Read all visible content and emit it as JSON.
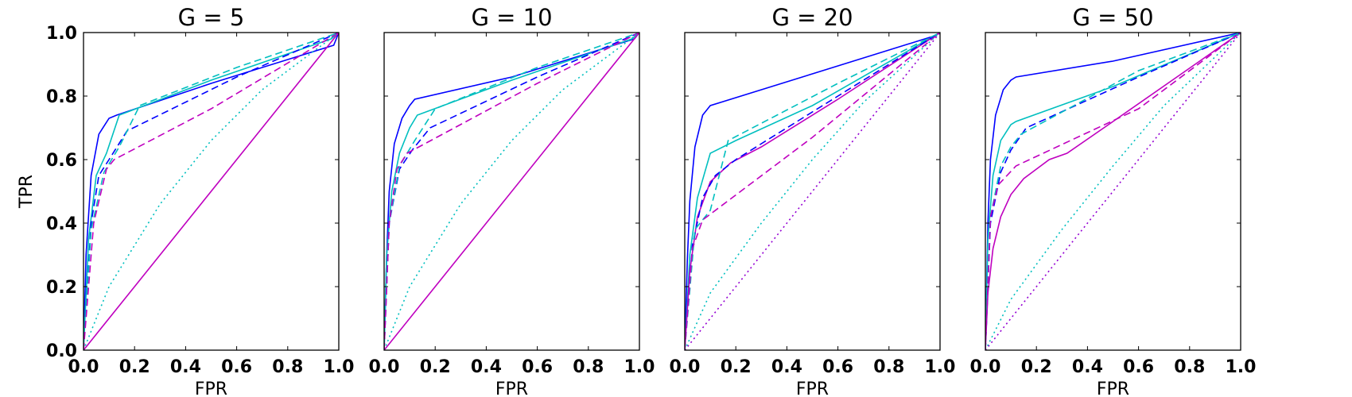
{
  "chart_data": [
    {
      "type": "line",
      "title": "G = 5",
      "xlabel": "FPR",
      "ylabel": "TPR",
      "xlim": [
        0,
        1
      ],
      "ylim": [
        0,
        1
      ],
      "xticks": [
        "0.0",
        "0.2",
        "0.4",
        "0.6",
        "0.8",
        "1.0"
      ],
      "yticks": [
        "0.0",
        "0.2",
        "0.4",
        "0.6",
        "0.8",
        "1.0"
      ],
      "grid": false,
      "series": [
        {
          "color": "#0000ff",
          "style": "solid",
          "x": [
            0,
            0.01,
            0.03,
            0.06,
            0.1,
            0.13,
            0.5,
            0.98,
            1.0
          ],
          "y": [
            0,
            0.3,
            0.55,
            0.68,
            0.73,
            0.74,
            0.84,
            0.96,
            1.0
          ]
        },
        {
          "color": "#00bfbf",
          "style": "solid",
          "x": [
            0,
            0.02,
            0.05,
            0.09,
            0.14,
            0.5,
            0.97,
            1.0
          ],
          "y": [
            0,
            0.35,
            0.55,
            0.62,
            0.74,
            0.85,
            0.98,
            1.0
          ]
        },
        {
          "color": "#0000ff",
          "style": "dashed",
          "x": [
            0,
            0.03,
            0.06,
            0.1,
            0.17,
            0.6,
            1.0
          ],
          "y": [
            0,
            0.4,
            0.55,
            0.6,
            0.69,
            0.86,
            1.0
          ]
        },
        {
          "color": "#00bfbf",
          "style": "dashed",
          "x": [
            0,
            0.03,
            0.08,
            0.14,
            0.22,
            0.6,
            1.0
          ],
          "y": [
            0,
            0.38,
            0.56,
            0.64,
            0.77,
            0.89,
            1.0
          ]
        },
        {
          "color": "#bf00bf",
          "style": "dashed",
          "x": [
            0,
            0.04,
            0.09,
            0.12,
            0.5,
            1.0
          ],
          "y": [
            0,
            0.4,
            0.57,
            0.6,
            0.76,
            1.0
          ]
        },
        {
          "color": "#00bfbf",
          "style": "dotted",
          "x": [
            0,
            0.1,
            0.3,
            0.5,
            0.7,
            1.0
          ],
          "y": [
            0,
            0.2,
            0.46,
            0.66,
            0.82,
            1.0
          ]
        },
        {
          "color": "#bf00bf",
          "style": "solid",
          "x": [
            0,
            1.0
          ],
          "y": [
            0,
            1.0
          ]
        }
      ]
    },
    {
      "type": "line",
      "title": "G = 10",
      "xlabel": "FPR",
      "ylabel": "",
      "xlim": [
        0,
        1
      ],
      "ylim": [
        0,
        1
      ],
      "xticks": [
        "0.0",
        "0.2",
        "0.4",
        "0.6",
        "0.8",
        "1.0"
      ],
      "grid": false,
      "series": [
        {
          "color": "#0000ff",
          "style": "solid",
          "x": [
            0,
            0.01,
            0.02,
            0.04,
            0.07,
            0.1,
            0.12,
            0.5,
            0.98,
            1.0
          ],
          "y": [
            0,
            0.3,
            0.5,
            0.65,
            0.73,
            0.77,
            0.79,
            0.86,
            0.98,
            1.0
          ]
        },
        {
          "color": "#00bfbf",
          "style": "solid",
          "x": [
            0,
            0.01,
            0.03,
            0.06,
            0.1,
            0.13,
            0.5,
            0.97,
            1.0
          ],
          "y": [
            0,
            0.3,
            0.5,
            0.62,
            0.7,
            0.74,
            0.85,
            0.98,
            1.0
          ]
        },
        {
          "color": "#0000ff",
          "style": "dashed",
          "x": [
            0,
            0.02,
            0.06,
            0.11,
            0.18,
            0.6,
            1.0
          ],
          "y": [
            0,
            0.4,
            0.57,
            0.63,
            0.7,
            0.86,
            1.0
          ]
        },
        {
          "color": "#00bfbf",
          "style": "dashed",
          "x": [
            0,
            0.02,
            0.06,
            0.12,
            0.2,
            0.6,
            1.0
          ],
          "y": [
            0,
            0.4,
            0.58,
            0.66,
            0.76,
            0.89,
            1.0
          ]
        },
        {
          "color": "#bf00bf",
          "style": "dashed",
          "x": [
            0,
            0.02,
            0.05,
            0.09,
            0.6,
            1.0
          ],
          "y": [
            0,
            0.4,
            0.57,
            0.62,
            0.84,
            1.0
          ]
        },
        {
          "color": "#00bfbf",
          "style": "dotted",
          "x": [
            0,
            0.1,
            0.3,
            0.5,
            0.7,
            1.0
          ],
          "y": [
            0,
            0.2,
            0.46,
            0.66,
            0.82,
            1.0
          ]
        },
        {
          "color": "#bf00bf",
          "style": "solid",
          "x": [
            0,
            1.0
          ],
          "y": [
            0,
            1.0
          ]
        }
      ]
    },
    {
      "type": "line",
      "title": "G = 20",
      "xlabel": "FPR",
      "ylabel": "",
      "xlim": [
        0,
        1
      ],
      "ylim": [
        0,
        1
      ],
      "xticks": [
        "0.0",
        "0.2",
        "0.4",
        "0.6",
        "0.8",
        "1.0"
      ],
      "grid": false,
      "series": [
        {
          "color": "#0000ff",
          "style": "solid",
          "x": [
            0,
            0.01,
            0.02,
            0.04,
            0.07,
            0.1,
            0.5,
            0.98,
            1.0
          ],
          "y": [
            0,
            0.28,
            0.47,
            0.64,
            0.74,
            0.77,
            0.87,
            0.99,
            1.0
          ]
        },
        {
          "color": "#00bfbf",
          "style": "solid",
          "x": [
            0,
            0.02,
            0.05,
            0.1,
            0.2,
            0.5,
            1.0
          ],
          "y": [
            0,
            0.3,
            0.48,
            0.62,
            0.66,
            0.77,
            1.0
          ]
        },
        {
          "color": "#bf00bf",
          "style": "solid",
          "x": [
            0,
            0.02,
            0.05,
            0.1,
            0.18,
            0.3,
            0.6,
            1.0
          ],
          "y": [
            0,
            0.25,
            0.42,
            0.53,
            0.59,
            0.64,
            0.79,
            1.0
          ]
        },
        {
          "color": "#0000ff",
          "style": "dashed",
          "x": [
            0,
            0.03,
            0.07,
            0.12,
            0.2,
            0.6,
            1.0
          ],
          "y": [
            0,
            0.33,
            0.48,
            0.55,
            0.6,
            0.8,
            1.0
          ]
        },
        {
          "color": "#00bfbf",
          "style": "dashed",
          "x": [
            0,
            0.04,
            0.1,
            0.17,
            0.6,
            1.0
          ],
          "y": [
            0,
            0.38,
            0.44,
            0.66,
            0.84,
            1.0
          ]
        },
        {
          "color": "#bf00bf",
          "style": "dashed",
          "x": [
            0,
            0.03,
            0.07,
            0.5,
            1.0
          ],
          "y": [
            0,
            0.32,
            0.41,
            0.67,
            1.0
          ]
        },
        {
          "color": "#00bfbf",
          "style": "dotted",
          "x": [
            0,
            0.1,
            0.3,
            0.5,
            0.7,
            1.0
          ],
          "y": [
            0,
            0.18,
            0.4,
            0.6,
            0.78,
            1.0
          ]
        },
        {
          "color": "#9400d3",
          "style": "dotted",
          "x": [
            0,
            1.0
          ],
          "y": [
            0,
            1.0
          ]
        }
      ]
    },
    {
      "type": "line",
      "title": "G = 50",
      "xlabel": "FPR",
      "ylabel": "",
      "xlim": [
        0,
        1
      ],
      "ylim": [
        0,
        1
      ],
      "xticks": [
        "0.0",
        "0.2",
        "0.4",
        "0.6",
        "0.8",
        "1.0"
      ],
      "grid": false,
      "series": [
        {
          "color": "#0000ff",
          "style": "solid",
          "x": [
            0,
            0.01,
            0.02,
            0.04,
            0.07,
            0.1,
            0.12,
            0.5,
            1.0
          ],
          "y": [
            0,
            0.4,
            0.6,
            0.74,
            0.82,
            0.85,
            0.86,
            0.91,
            1.0
          ]
        },
        {
          "color": "#00bfbf",
          "style": "solid",
          "x": [
            0,
            0.01,
            0.03,
            0.06,
            0.1,
            0.12,
            0.5,
            1.0
          ],
          "y": [
            0,
            0.35,
            0.55,
            0.66,
            0.71,
            0.72,
            0.83,
            1.0
          ]
        },
        {
          "color": "#bf00bf",
          "style": "solid",
          "x": [
            0,
            0.01,
            0.03,
            0.06,
            0.1,
            0.15,
            0.2,
            0.25,
            0.32,
            0.5,
            0.75,
            1.0
          ],
          "y": [
            0,
            0.18,
            0.32,
            0.42,
            0.49,
            0.54,
            0.57,
            0.6,
            0.62,
            0.72,
            0.86,
            1.0
          ]
        },
        {
          "color": "#0000ff",
          "style": "dashed",
          "x": [
            0,
            0.02,
            0.06,
            0.1,
            0.16,
            0.6,
            1.0
          ],
          "y": [
            0,
            0.4,
            0.56,
            0.63,
            0.7,
            0.86,
            1.0
          ]
        },
        {
          "color": "#00bfbf",
          "style": "dashed",
          "x": [
            0,
            0.02,
            0.06,
            0.1,
            0.14,
            0.6,
            1.0
          ],
          "y": [
            0,
            0.42,
            0.58,
            0.64,
            0.68,
            0.88,
            1.0
          ]
        },
        {
          "color": "#bf00bf",
          "style": "dashed",
          "x": [
            0,
            0.02,
            0.05,
            0.12,
            0.6,
            1.0
          ],
          "y": [
            0,
            0.42,
            0.52,
            0.58,
            0.76,
            1.0
          ]
        },
        {
          "color": "#00bfbf",
          "style": "dotted",
          "x": [
            0,
            0.1,
            0.3,
            0.5,
            0.7,
            1.0
          ],
          "y": [
            0,
            0.16,
            0.38,
            0.58,
            0.77,
            1.0
          ]
        },
        {
          "color": "#9400d3",
          "style": "dotted",
          "x": [
            0,
            1.0
          ],
          "y": [
            0,
            1.0
          ]
        }
      ]
    }
  ]
}
